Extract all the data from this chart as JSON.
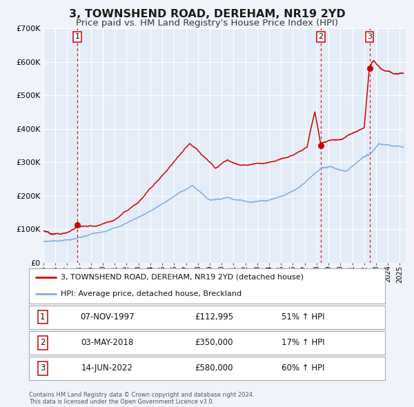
{
  "title": "3, TOWNSHEND ROAD, DEREHAM, NR19 2YD",
  "subtitle": "Price paid vs. HM Land Registry's House Price Index (HPI)",
  "title_fontsize": 11.5,
  "subtitle_fontsize": 9.5,
  "bg_color": "#f0f4fa",
  "plot_bg_color": "#e4ecf7",
  "grid_color": "#ffffff",
  "red_line_color": "#cc0000",
  "blue_line_color": "#7aaddb",
  "ylim": [
    0,
    700000
  ],
  "yticks": [
    0,
    100000,
    200000,
    300000,
    400000,
    500000,
    600000,
    700000
  ],
  "xlim_start": 1995.0,
  "xlim_end": 2025.5,
  "sale_dates": [
    1997.85,
    2018.33,
    2022.45
  ],
  "sale_prices": [
    112995,
    350000,
    580000
  ],
  "sale_labels": [
    "1",
    "2",
    "3"
  ],
  "legend_red_label": "3, TOWNSHEND ROAD, DEREHAM, NR19 2YD (detached house)",
  "legend_blue_label": "HPI: Average price, detached house, Breckland",
  "table_rows": [
    {
      "num": "1",
      "date": "07-NOV-1997",
      "price": "£112,995",
      "hpi": "51% ↑ HPI"
    },
    {
      "num": "2",
      "date": "03-MAY-2018",
      "price": "£350,000",
      "hpi": "17% ↑ HPI"
    },
    {
      "num": "3",
      "date": "14-JUN-2022",
      "price": "£580,000",
      "hpi": "60% ↑ HPI"
    }
  ],
  "footer_text": "Contains HM Land Registry data © Crown copyright and database right 2024.\nThis data is licensed under the Open Government Licence v3.0.",
  "xtick_years": [
    1995,
    1996,
    1997,
    1998,
    1999,
    2000,
    2001,
    2002,
    2003,
    2004,
    2005,
    2006,
    2007,
    2008,
    2009,
    2010,
    2011,
    2012,
    2013,
    2014,
    2015,
    2016,
    2017,
    2018,
    2019,
    2020,
    2021,
    2022,
    2023,
    2024,
    2025
  ]
}
